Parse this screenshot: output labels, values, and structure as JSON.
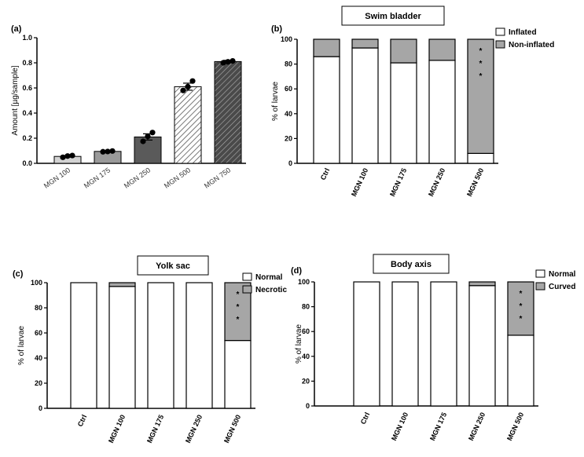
{
  "chart_data": [
    {
      "panel": "(a)",
      "type": "bar",
      "title": "",
      "xlabel": "",
      "ylabel": "Amount [µg/sample]",
      "ylim": [
        0,
        1.0
      ],
      "yticks": [
        "0.0",
        "0.2",
        "0.4",
        "0.6",
        "0.8",
        "1.0"
      ],
      "categories": [
        "MGN 100",
        "MGN 175",
        "MGN 250",
        "MGN 500",
        "MGN 750"
      ],
      "values": [
        0.055,
        0.095,
        0.21,
        0.61,
        0.81
      ],
      "errors": [
        0.006,
        0.005,
        0.025,
        0.028,
        0.01
      ],
      "points": [
        [
          0.048,
          0.058,
          0.062
        ],
        [
          0.092,
          0.094,
          0.098
        ],
        [
          0.175,
          0.215,
          0.245
        ],
        [
          0.58,
          0.61,
          0.655
        ],
        [
          0.8,
          0.808,
          0.815
        ]
      ],
      "colors": [
        "#d3d3d3",
        "#9a9a9a",
        "#5a5a5a",
        "#ffffff",
        "#333333"
      ],
      "patterns": [
        "solid",
        "solid",
        "solid",
        "hatch-light",
        "hatch-dark"
      ],
      "grid": false
    },
    {
      "panel": "(b)",
      "type": "bar",
      "stacked": true,
      "title": "Swim bladder",
      "xlabel": "",
      "ylabel": "% of larvae",
      "ylim": [
        0,
        100
      ],
      "yticks": [
        "0",
        "20",
        "40",
        "60",
        "80",
        "100"
      ],
      "categories": [
        "Ctrl",
        "MGN 100",
        "MGN 175",
        "MGN 250",
        "MGN 500"
      ],
      "series": [
        {
          "name": "Inflated",
          "color": "#ffffff",
          "values": [
            86,
            93,
            81,
            83,
            8
          ]
        },
        {
          "name": "Non-inflated",
          "color": "#a6a6a6",
          "values": [
            14,
            7,
            19,
            17,
            92
          ]
        }
      ],
      "annotations": [
        {
          "category": "MGN 500",
          "text": "* * *"
        }
      ],
      "legend": "right"
    },
    {
      "panel": "(c)",
      "type": "bar",
      "stacked": true,
      "title": "Yolk sac",
      "xlabel": "",
      "ylabel": "% of larvae",
      "ylim": [
        0,
        100
      ],
      "yticks": [
        "0",
        "20",
        "40",
        "60",
        "80",
        "100"
      ],
      "categories": [
        "Ctrl",
        "MGN 100",
        "MGN 175",
        "MGN 250",
        "MGN 500"
      ],
      "series": [
        {
          "name": "Normal",
          "color": "#ffffff",
          "values": [
            100,
            97,
            100,
            100,
            54
          ]
        },
        {
          "name": "Necrotic",
          "color": "#a6a6a6",
          "values": [
            0,
            3,
            0,
            0,
            46
          ]
        }
      ],
      "annotations": [
        {
          "category": "MGN 500",
          "text": "* * *"
        }
      ],
      "legend": "right"
    },
    {
      "panel": "(d)",
      "type": "bar",
      "stacked": true,
      "title": "Body axis",
      "xlabel": "",
      "ylabel": "% of larvae",
      "ylim": [
        0,
        100
      ],
      "yticks": [
        "0",
        "20",
        "40",
        "60",
        "80",
        "100"
      ],
      "categories": [
        "Ctrl",
        "MGN 100",
        "MGN 175",
        "MGN 250",
        "MGN 500"
      ],
      "series": [
        {
          "name": "Normal",
          "color": "#ffffff",
          "values": [
            100,
            100,
            100,
            97,
            57
          ]
        },
        {
          "name": "Curved",
          "color": "#a6a6a6",
          "values": [
            0,
            0,
            0,
            3,
            43
          ]
        }
      ],
      "annotations": [
        {
          "category": "MGN 500",
          "text": "* * *"
        }
      ],
      "legend": "right"
    }
  ]
}
